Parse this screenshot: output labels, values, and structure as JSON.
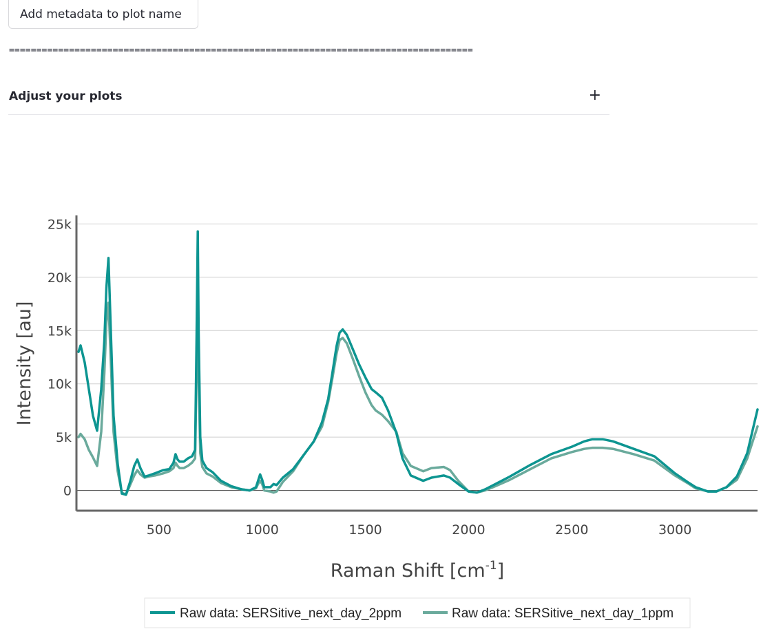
{
  "controls": {
    "metadata_button": "Add metadata to plot name",
    "separator": "=====================================================================================",
    "expander_label": "Adjust your plots",
    "expander_toggle": "+"
  },
  "chart_data": {
    "type": "line",
    "xlabel_main": "Raman Shift [cm",
    "xlabel_sup": "-1",
    "xlabel_end": "]",
    "ylabel": "Intensity [au]",
    "xlim": [
      100,
      3400
    ],
    "ylim": [
      -1900,
      25800
    ],
    "xticks": [
      500,
      1000,
      1500,
      2000,
      2500,
      3000
    ],
    "xtick_labels": [
      "500",
      "1000",
      "1500",
      "2000",
      "2500",
      "3000"
    ],
    "yticks": [
      0,
      5000,
      10000,
      15000,
      20000,
      25000
    ],
    "ytick_labels": [
      "0",
      "5k",
      "10k",
      "15k",
      "20k",
      "25k"
    ],
    "grid": true,
    "legend_position": "bottom-center",
    "series": [
      {
        "name": "Raw data: SERSitive_next_day_2ppm",
        "color": "#0d9591",
        "x": [
          110,
          120,
          140,
          160,
          180,
          200,
          220,
          235,
          245,
          255,
          265,
          280,
          300,
          320,
          340,
          360,
          380,
          395,
          410,
          430,
          450,
          480,
          520,
          550,
          570,
          580,
          590,
          600,
          620,
          640,
          660,
          675,
          682,
          688,
          692,
          700,
          710,
          730,
          760,
          800,
          850,
          900,
          940,
          970,
          980,
          990,
          1000,
          1010,
          1040,
          1055,
          1070,
          1100,
          1150,
          1200,
          1250,
          1290,
          1320,
          1340,
          1360,
          1375,
          1390,
          1410,
          1440,
          1470,
          1500,
          1530,
          1550,
          1580,
          1610,
          1650,
          1680,
          1720,
          1780,
          1820,
          1880,
          1910,
          1950,
          2000,
          2040,
          2080,
          2130,
          2200,
          2300,
          2400,
          2500,
          2560,
          2600,
          2650,
          2700,
          2800,
          2900,
          3000,
          3060,
          3100,
          3160,
          3200,
          3250,
          3300,
          3350,
          3400
        ],
        "y": [
          13000,
          13600,
          12000,
          9500,
          7000,
          5600,
          9500,
          14000,
          19000,
          21800,
          16000,
          7000,
          2500,
          -300,
          -400,
          800,
          2300,
          2900,
          2100,
          1300,
          1400,
          1600,
          1900,
          2000,
          2600,
          3400,
          2900,
          2700,
          2700,
          3000,
          3200,
          3800,
          14000,
          24300,
          15000,
          5000,
          2800,
          2100,
          1700,
          900,
          400,
          100,
          0,
          300,
          900,
          1500,
          1000,
          300,
          300,
          600,
          500,
          1200,
          2000,
          3300,
          4600,
          6400,
          8600,
          11000,
          13500,
          14800,
          15100,
          14600,
          13200,
          11800,
          10600,
          9500,
          9200,
          8700,
          7500,
          5400,
          3000,
          1400,
          900,
          1200,
          1400,
          1200,
          600,
          -100,
          -200,
          100,
          600,
          1300,
          2400,
          3400,
          4100,
          4600,
          4800,
          4800,
          4600,
          3900,
          3200,
          1600,
          800,
          300,
          -100,
          -100,
          300,
          1300,
          3500,
          7600
        ]
      },
      {
        "name": "Raw data: SERSitive_next_day_1ppm",
        "color": "#6aaa9c",
        "x": [
          110,
          120,
          140,
          160,
          180,
          200,
          220,
          235,
          245,
          255,
          265,
          280,
          300,
          320,
          340,
          360,
          380,
          395,
          410,
          430,
          450,
          480,
          520,
          550,
          570,
          580,
          590,
          600,
          620,
          640,
          660,
          675,
          682,
          688,
          692,
          700,
          710,
          730,
          760,
          800,
          850,
          900,
          940,
          970,
          980,
          990,
          1000,
          1010,
          1040,
          1055,
          1070,
          1100,
          1150,
          1200,
          1250,
          1290,
          1320,
          1340,
          1360,
          1375,
          1390,
          1410,
          1440,
          1470,
          1500,
          1530,
          1550,
          1580,
          1610,
          1650,
          1680,
          1720,
          1780,
          1820,
          1880,
          1910,
          1950,
          2000,
          2040,
          2080,
          2130,
          2200,
          2300,
          2400,
          2500,
          2560,
          2600,
          2650,
          2700,
          2800,
          2900,
          3000,
          3060,
          3100,
          3160,
          3200,
          3250,
          3300,
          3350,
          3400
        ],
        "y": [
          5000,
          5300,
          4800,
          3800,
          3100,
          2300,
          5500,
          11000,
          15800,
          17600,
          13000,
          5500,
          1800,
          -200,
          -400,
          500,
          1400,
          1900,
          1500,
          1200,
          1300,
          1400,
          1600,
          1800,
          2100,
          2600,
          2300,
          2100,
          2100,
          2300,
          2600,
          3000,
          11000,
          16000,
          11000,
          3500,
          2200,
          1600,
          1300,
          700,
          300,
          100,
          0,
          200,
          600,
          900,
          600,
          0,
          -100,
          -200,
          -100,
          800,
          1800,
          3300,
          4600,
          6000,
          8300,
          10500,
          12800,
          14100,
          14300,
          13800,
          12300,
          10700,
          9200,
          8000,
          7500,
          7100,
          6500,
          5500,
          3500,
          2300,
          1800,
          2100,
          2200,
          1900,
          900,
          -100,
          -200,
          0,
          400,
          1000,
          2000,
          3000,
          3600,
          3900,
          4000,
          4000,
          3900,
          3400,
          2800,
          1400,
          700,
          200,
          -100,
          -100,
          300,
          1000,
          3000,
          6000
        ]
      }
    ]
  }
}
